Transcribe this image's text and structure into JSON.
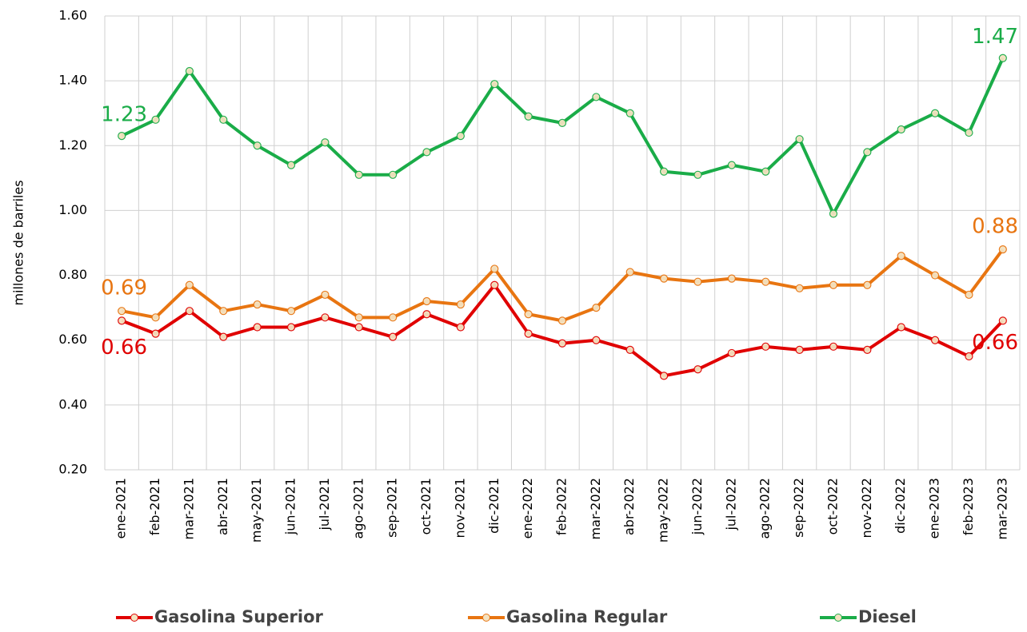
{
  "chart_data": {
    "type": "line",
    "y_label": "millones de barriles",
    "categories": [
      "ene-2021",
      "feb-2021",
      "mar-2021",
      "abr-2021",
      "may-2021",
      "jun-2021",
      "jul-2021",
      "ago-2021",
      "sep-2021",
      "oct-2021",
      "nov-2021",
      "dic-2021",
      "ene-2022",
      "feb-2022",
      "mar-2022",
      "abr-2022",
      "may-2022",
      "jun-2022",
      "jul-2022",
      "ago-2022",
      "sep-2022",
      "oct-2022",
      "nov-2022",
      "dic-2022",
      "ene-2023",
      "feb-2023",
      "mar-2023"
    ],
    "series": [
      {
        "name": "Gasolina Superior",
        "color": "#e00000",
        "values": [
          0.66,
          0.62,
          0.69,
          0.61,
          0.64,
          0.64,
          0.67,
          0.64,
          0.61,
          0.68,
          0.64,
          0.77,
          0.62,
          0.59,
          0.6,
          0.57,
          0.49,
          0.51,
          0.56,
          0.58,
          0.57,
          0.58,
          0.57,
          0.64,
          0.6,
          0.55,
          0.66
        ]
      },
      {
        "name": "Gasolina Regular",
        "color": "#e87511",
        "values": [
          0.69,
          0.67,
          0.77,
          0.69,
          0.71,
          0.69,
          0.74,
          0.67,
          0.67,
          0.72,
          0.71,
          0.82,
          0.68,
          0.66,
          0.7,
          0.81,
          0.79,
          0.78,
          0.79,
          0.78,
          0.76,
          0.77,
          0.77,
          0.86,
          0.8,
          0.74,
          0.88
        ]
      },
      {
        "name": "Diesel",
        "color": "#1aac48",
        "values": [
          1.23,
          1.28,
          1.43,
          1.28,
          1.2,
          1.14,
          1.21,
          1.11,
          1.11,
          1.18,
          1.23,
          1.39,
          1.29,
          1.27,
          1.35,
          1.3,
          1.12,
          1.11,
          1.14,
          1.12,
          1.22,
          0.99,
          1.18,
          1.25,
          1.3,
          1.24,
          1.47
        ]
      }
    ],
    "ylim": [
      0.2,
      1.6
    ],
    "yticks": [
      {
        "value": 0.2,
        "label": "0.20"
      },
      {
        "value": 0.4,
        "label": "0.40"
      },
      {
        "value": 0.6,
        "label": "0.60"
      },
      {
        "value": 0.8,
        "label": "0.80"
      },
      {
        "value": 1.0,
        "label": "1.00"
      },
      {
        "value": 1.2,
        "label": "1.20"
      },
      {
        "value": 1.4,
        "label": "1.40"
      },
      {
        "value": 1.6,
        "label": "1.60"
      }
    ],
    "grid": true
  }
}
